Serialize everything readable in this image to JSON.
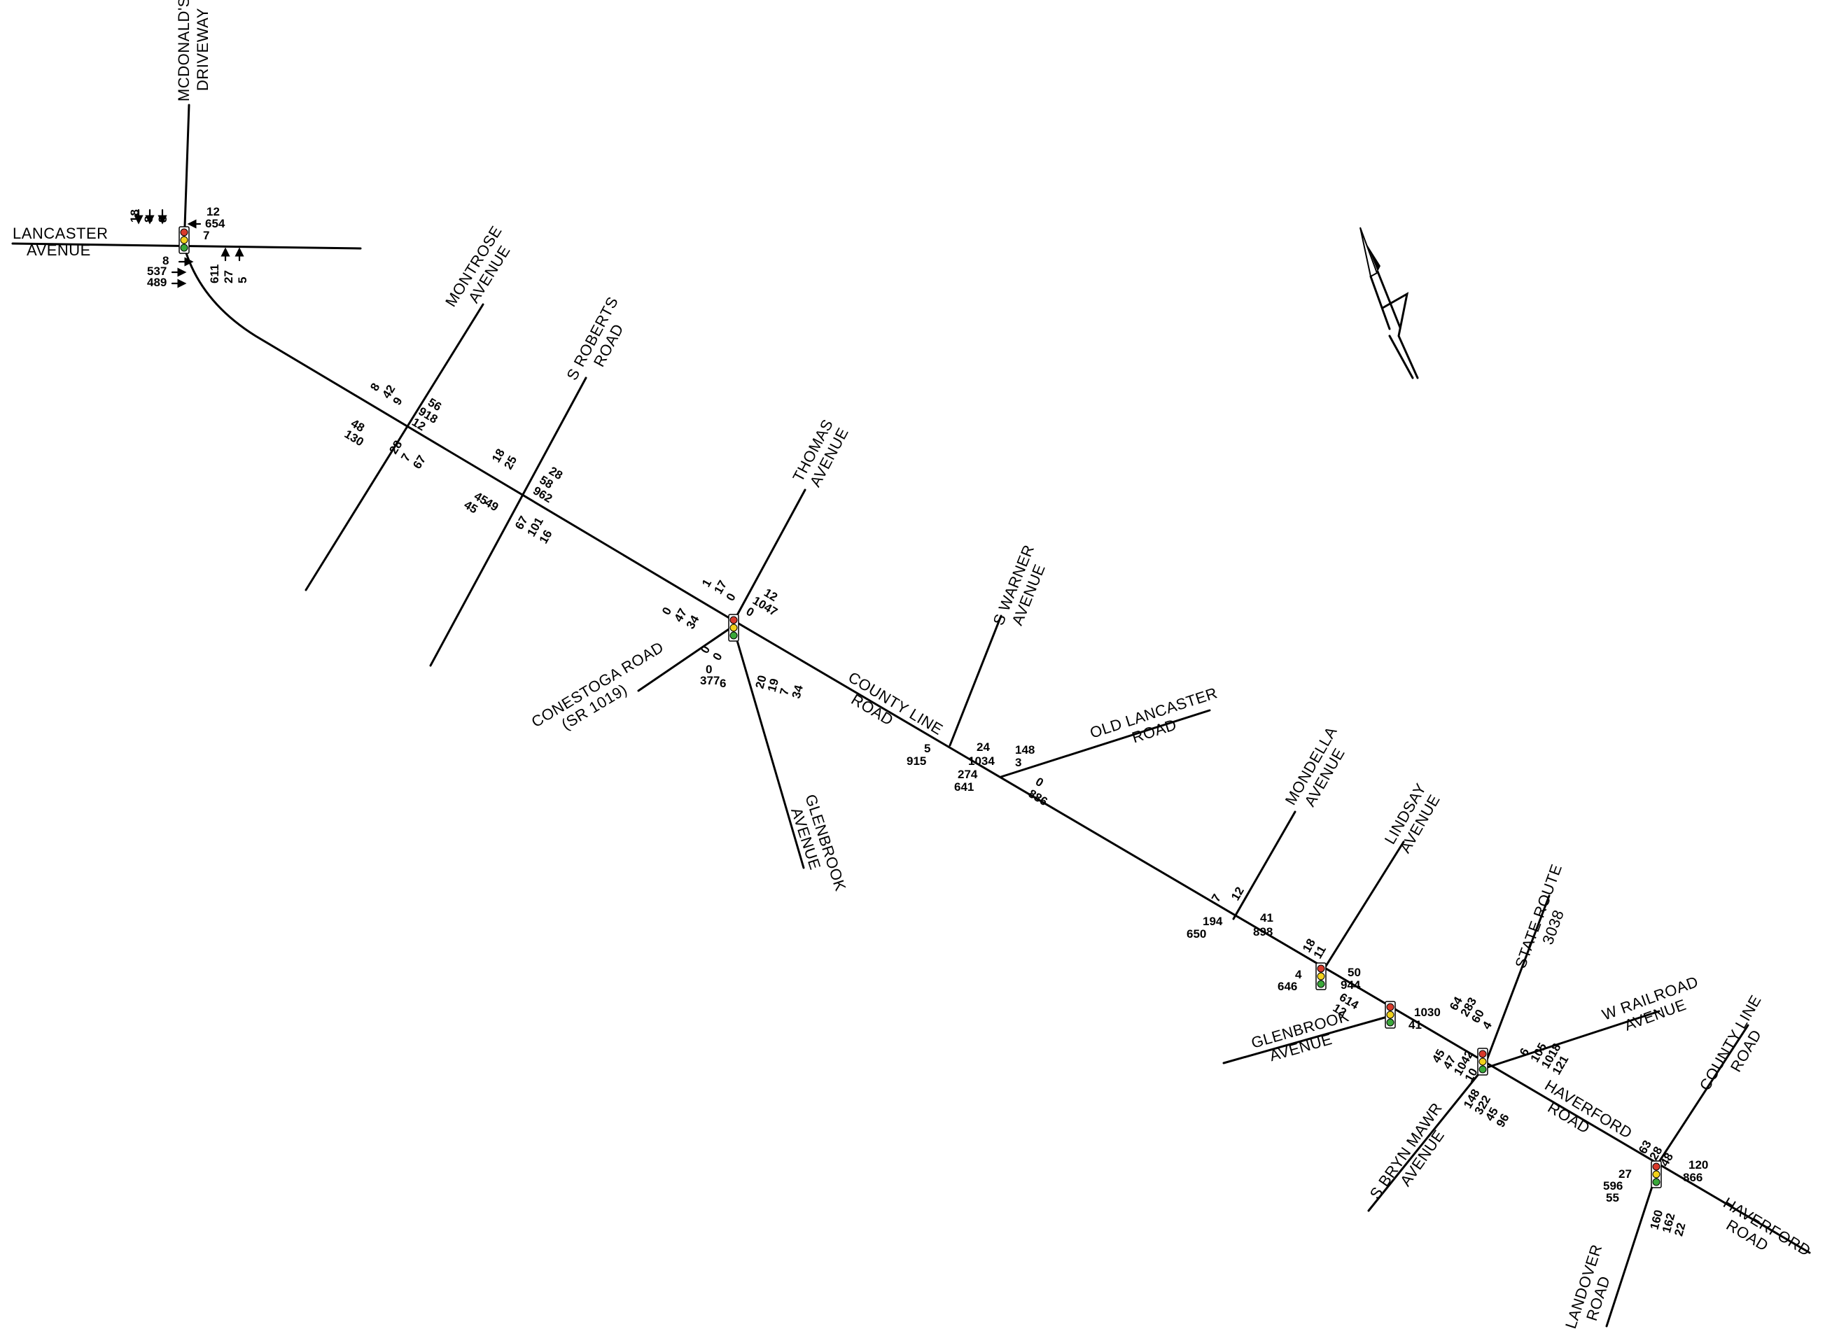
{
  "streets": {
    "mcdonalds": [
      "MCDONALD'S",
      "DRIVEWAY"
    ],
    "lancaster": [
      "LANCASTER",
      "AVENUE"
    ],
    "montrose": [
      "MONTROSE",
      "AVENUE"
    ],
    "roberts": [
      "S ROBERTS",
      "ROAD"
    ],
    "thomas": [
      "THOMAS",
      "AVENUE"
    ],
    "conestoga": [
      "CONESTOGA ROAD",
      "(SR 1019)"
    ],
    "glenbrook_s": [
      "GLENBROOK",
      "AVENUE"
    ],
    "county_line": [
      "COUNTY LINE",
      "ROAD"
    ],
    "warner": [
      "S WARNER",
      "AVENUE"
    ],
    "old_lancaster": [
      "OLD LANCASTER",
      "ROAD"
    ],
    "mondella": [
      "MONDELLA",
      "AVENUE"
    ],
    "lindsay": [
      "LINDSAY",
      "AVENUE"
    ],
    "state_route": [
      "STATE ROUTE",
      "3038"
    ],
    "w_railroad": [
      "W RAILROAD",
      "AVENUE"
    ],
    "glenbrook_w": [
      "GLENBROOK",
      "AVENUE"
    ],
    "bryn_mawr": [
      "S BRYN MAWR",
      "AVENUE"
    ],
    "haverford_1": [
      "HAVERFORD",
      "ROAD"
    ],
    "county_line_2": [
      "COUNTY LINE",
      "ROAD"
    ],
    "haverford_2": [
      "HAVERFORD",
      "ROAD"
    ],
    "landover": [
      "LANDOVER",
      "ROAD"
    ]
  },
  "north_arrow": "N",
  "volumes": {
    "i1": [
      "18",
      "8",
      "8",
      "12",
      "654",
      "7",
      "8",
      "537",
      "489",
      "611",
      "27",
      "5"
    ],
    "i2": [
      "8",
      "42",
      "9",
      "56",
      "918",
      "12",
      "48",
      "130",
      "28",
      "7",
      "67"
    ],
    "i3": [
      "18",
      "25",
      "28",
      "58",
      "962",
      "45",
      "49",
      "45",
      "67",
      "101",
      "16"
    ],
    "i4": [
      "1",
      "17",
      "0",
      "12",
      "1047",
      "0",
      "0",
      "47",
      "34",
      "0",
      "0",
      "0",
      "377",
      "6",
      "20",
      "19",
      "7",
      "34"
    ],
    "i5": [
      "5",
      "915",
      "24",
      "1034",
      "148",
      "3",
      "274",
      "641",
      "0",
      "886"
    ],
    "i6": [
      "7",
      "12",
      "41",
      "898",
      "194",
      "650"
    ],
    "i7": [
      "18",
      "11",
      "50",
      "944",
      "4",
      "646"
    ],
    "i8": [
      "614",
      "12",
      "1030",
      "41"
    ],
    "i9": [
      "64",
      "283",
      "60",
      "4",
      "6",
      "105",
      "1018",
      "121",
      "45",
      "47",
      "1042",
      "10",
      "148",
      "322",
      "45",
      "96"
    ],
    "i10": [
      "63",
      "28",
      "48",
      "120",
      "866",
      "27",
      "596",
      "55",
      "160",
      "162",
      "22"
    ]
  }
}
